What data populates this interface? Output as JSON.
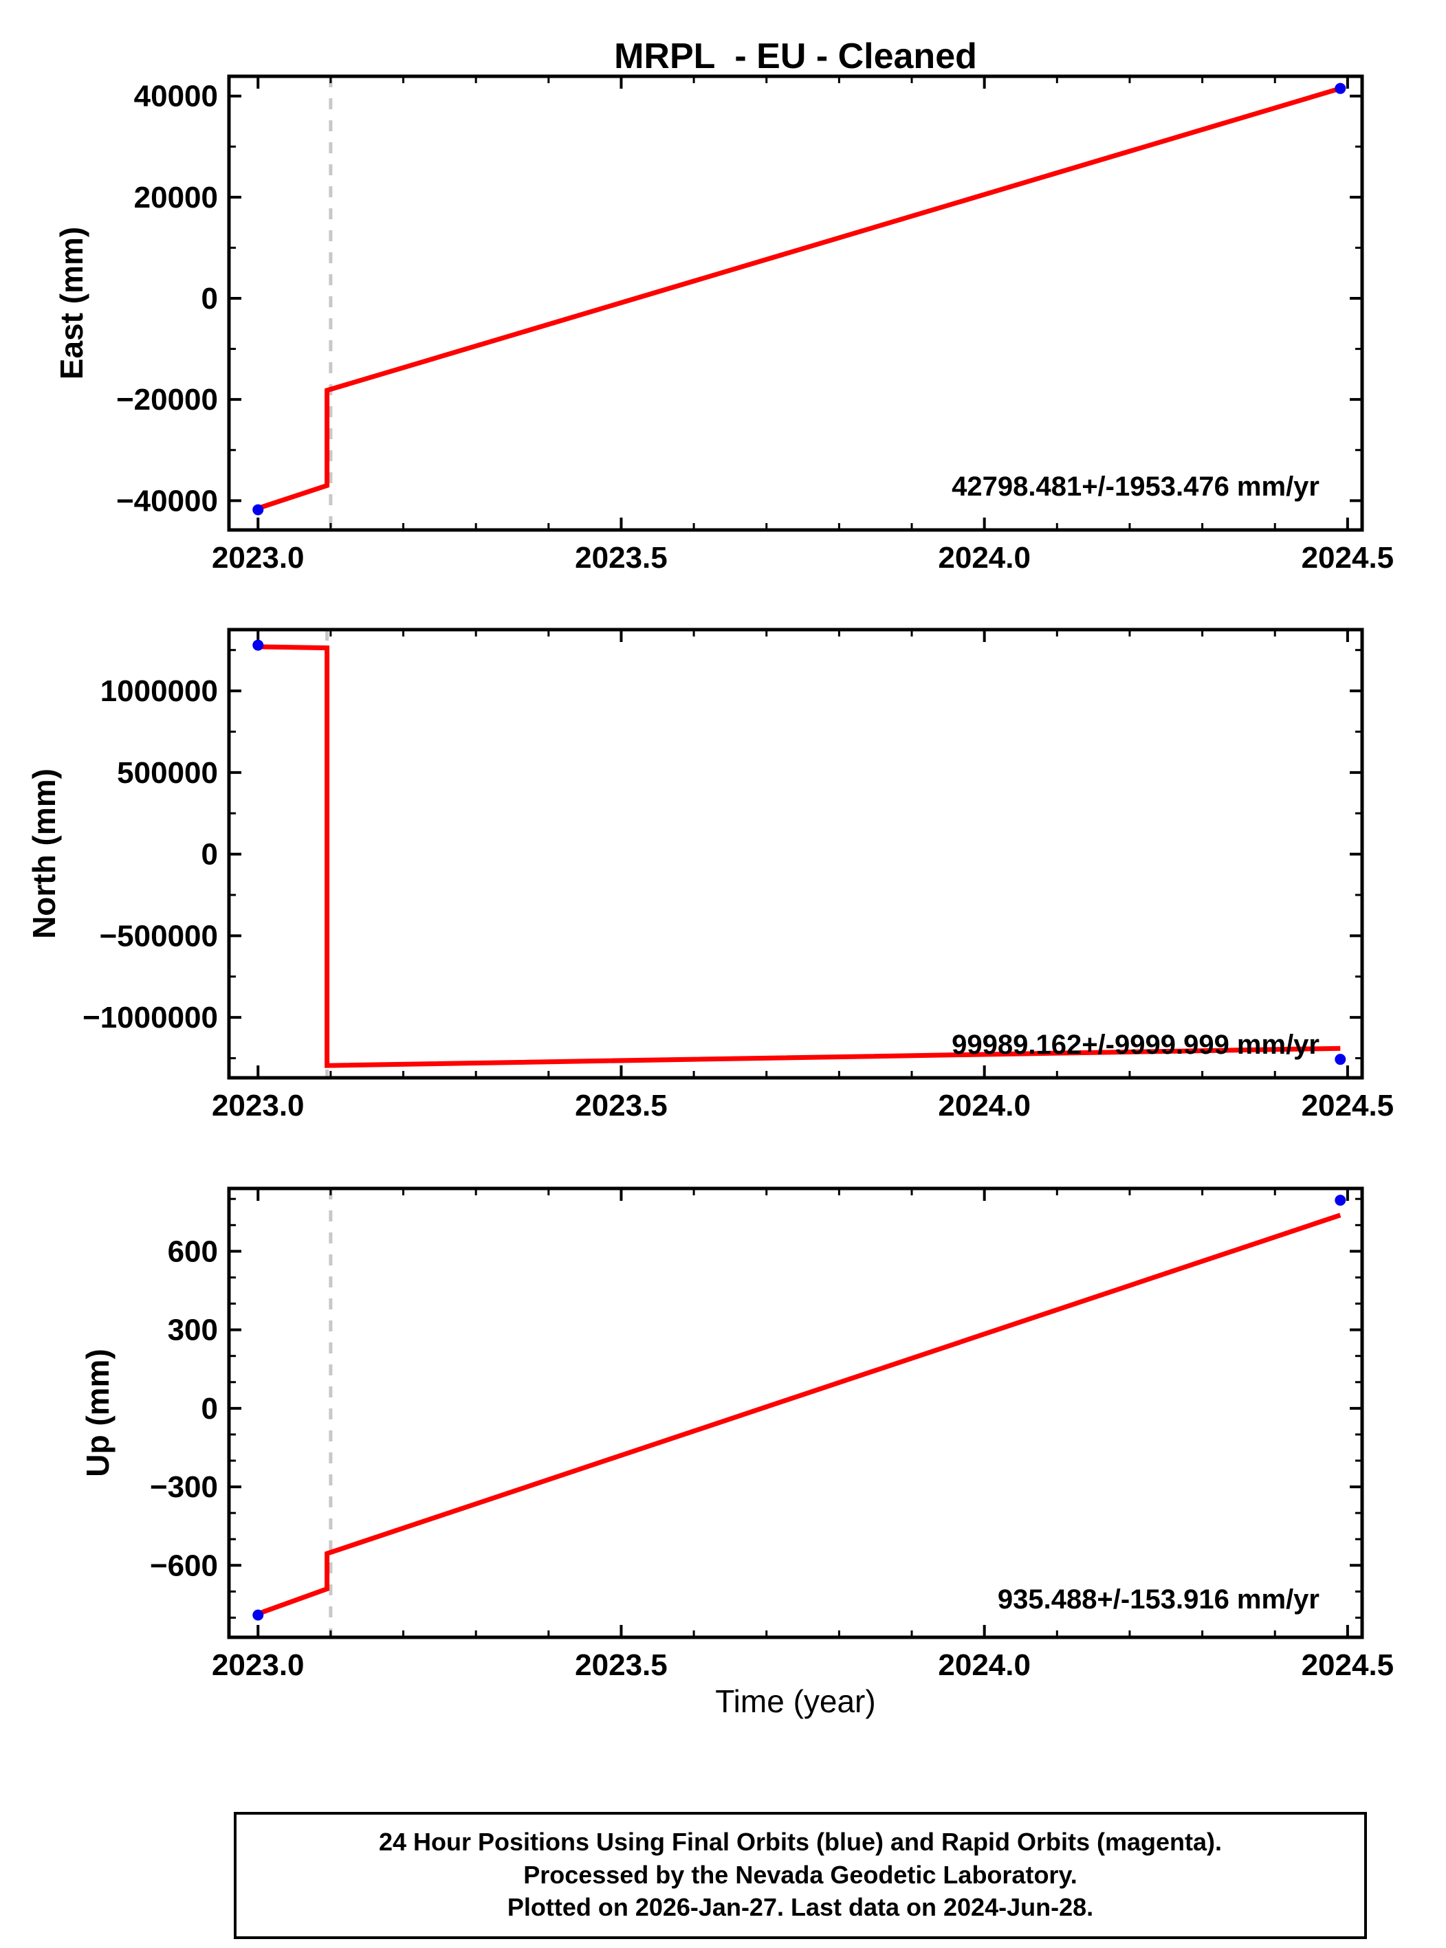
{
  "title": "MRPL  - EU - Cleaned",
  "xlabel": "Time (year)",
  "colors": {
    "trend_line": "#ff0000",
    "marker": "#0000ee",
    "event_line": "#c8c8c8",
    "frame": "#000000"
  },
  "footer": {
    "line1": "24 Hour Positions Using Final Orbits (blue) and Rapid Orbits (magenta).",
    "line2": "Processed by the Nevada Geodetic Laboratory.",
    "line3": "Plotted on 2026-Jan-27. Last data on 2024-Jun-28."
  },
  "chart_data": [
    {
      "type": "line",
      "name": "east",
      "ylabel": "East (mm)",
      "xlim": [
        2022.96,
        2024.52
      ],
      "ylim": [
        -45800,
        43900
      ],
      "xticks": {
        "values": [
          2023.0,
          2023.5,
          2024.0,
          2024.5
        ],
        "labels": [
          "2023.0",
          "2023.5",
          "2024.0",
          "2024.5"
        ],
        "minor_step": 0.1
      },
      "yticks": {
        "values": [
          -40000,
          -20000,
          0,
          20000,
          40000
        ],
        "labels": [
          "−40000",
          "−20000",
          "0",
          "20000",
          "40000"
        ],
        "minor_step": 10000
      },
      "line": [
        [
          2023.0,
          -41500
        ],
        [
          2023.095,
          -37000
        ],
        [
          2023.095,
          -18200
        ],
        [
          2024.49,
          41500
        ]
      ],
      "markers": [
        [
          2023.0,
          -41800
        ],
        [
          2024.49,
          41500
        ]
      ],
      "event_x": 2023.1,
      "annotation": "42798.481+/-1953.476 mm/yr"
    },
    {
      "type": "line",
      "name": "north",
      "ylabel": "North (mm)",
      "xlim": [
        2022.96,
        2024.52
      ],
      "ylim": [
        -1370000,
        1375000
      ],
      "xticks": {
        "values": [
          2023.0,
          2023.5,
          2024.0,
          2024.5
        ],
        "labels": [
          "2023.0",
          "2023.5",
          "2024.0",
          "2024.5"
        ],
        "minor_step": 0.1
      },
      "yticks": {
        "values": [
          -1000000,
          -500000,
          0,
          500000,
          1000000
        ],
        "labels": [
          "−1000000",
          "−500000",
          "0",
          "500000",
          "1000000"
        ],
        "minor_step": 250000
      },
      "line": [
        [
          2023.0,
          1270000
        ],
        [
          2023.095,
          1263000
        ],
        [
          2023.095,
          -1295000
        ],
        [
          2024.49,
          -1190000
        ]
      ],
      "markers": [
        [
          2023.0,
          1280000
        ],
        [
          2024.49,
          -1257000
        ]
      ],
      "event_x": 2023.095,
      "annotation": "99989.162+/-9999.999 mm/yr"
    },
    {
      "type": "line",
      "name": "up",
      "ylabel": "Up (mm)",
      "xlim": [
        2022.96,
        2024.52
      ],
      "ylim": [
        -875,
        840
      ],
      "xticks": {
        "values": [
          2023.0,
          2023.5,
          2024.0,
          2024.5
        ],
        "labels": [
          "2023.0",
          "2023.5",
          "2024.0",
          "2024.5"
        ],
        "minor_step": 0.1
      },
      "yticks": {
        "values": [
          -600,
          -300,
          0,
          300,
          600
        ],
        "labels": [
          "−600",
          "−300",
          "0",
          "300",
          "600"
        ],
        "minor_step": 100
      },
      "line": [
        [
          2023.0,
          -785
        ],
        [
          2023.095,
          -690
        ],
        [
          2023.095,
          -555
        ],
        [
          2024.49,
          738
        ]
      ],
      "markers": [
        [
          2023.0,
          -790
        ],
        [
          2024.49,
          795
        ]
      ],
      "event_x": 2023.1,
      "annotation": "935.488+/-153.916 mm/yr"
    }
  ]
}
